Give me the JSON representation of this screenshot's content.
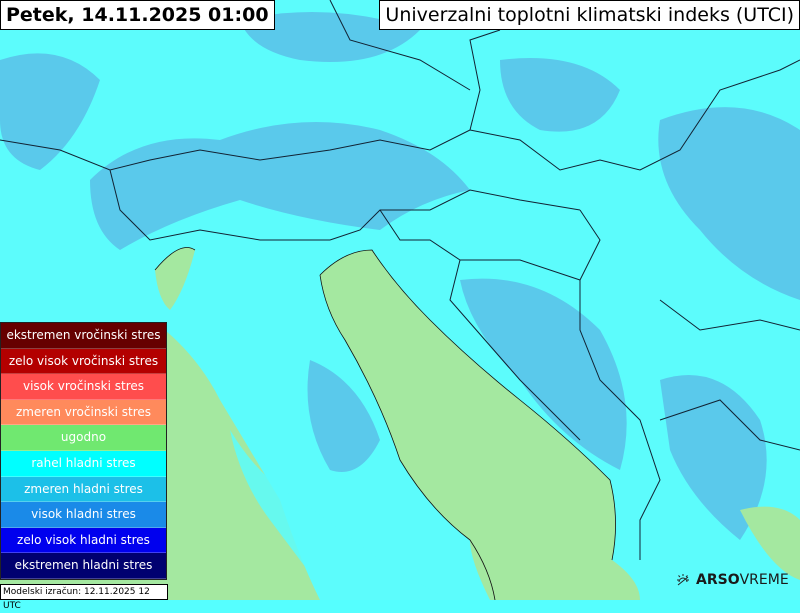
{
  "header": {
    "date_title": "Petek, 14.11.2025 01:00",
    "map_title": "Univerzalni toplotni klimatski indeks (UTCI)"
  },
  "legend": [
    {
      "label": "ekstremen vročinski stres",
      "color": "#660000"
    },
    {
      "label": "zelo visok vročinski stres",
      "color": "#b30000"
    },
    {
      "label": "visok vročinski stres",
      "color": "#ff4d4d"
    },
    {
      "label": "zmeren vročinski stres",
      "color": "#ff8a5c"
    },
    {
      "label": "ugodno",
      "color": "#70e870"
    },
    {
      "label": "rahel hladni stres",
      "color": "#00ffff"
    },
    {
      "label": "zmeren hladni stres",
      "color": "#1cc0e8"
    },
    {
      "label": "visok hladni stres",
      "color": "#1a8ae8"
    },
    {
      "label": "zelo visok hladni stres",
      "color": "#0000ee"
    },
    {
      "label": "ekstremen hladni stres",
      "color": "#000070"
    }
  ],
  "footer": {
    "model_run": "Modelski izračun: 12.11.2025 12 UTC"
  },
  "brand": {
    "bold": "ARSO",
    "light": "VREME",
    "icon": "sun-icon"
  },
  "map_colors": {
    "light_cold": "#5cfcfc",
    "moderate_cold": "#55b8e8",
    "comfortable": "#a4e8a0"
  }
}
